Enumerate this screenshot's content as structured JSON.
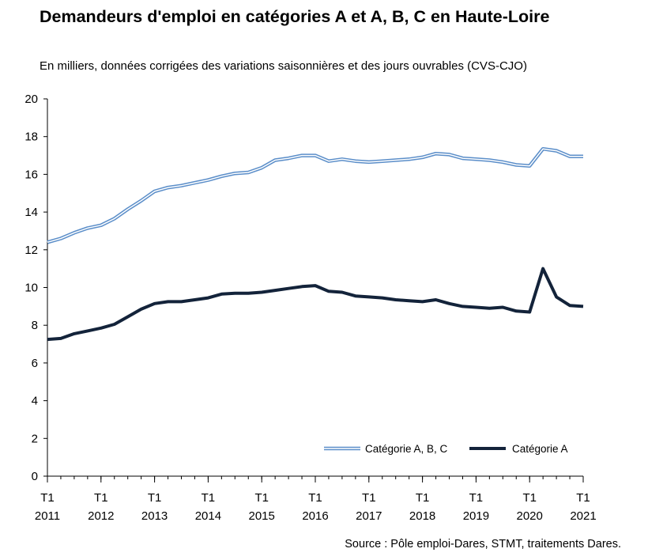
{
  "title": "Demandeurs d'emploi en catégories A et A, B, C en Haute-Loire",
  "subtitle": "En milliers, données corrigées des variations saisonnières et des jours ouvrables (CVS-CJO)",
  "source": "Source : Pôle emploi-Dares, STMT, traitements Dares.",
  "colors": {
    "abc": "#5b8ec9",
    "abc_inner": "#ffffff",
    "a": "#13233a",
    "axis": "#000000"
  },
  "chart_data": {
    "type": "line",
    "title": "Demandeurs d'emploi en catégories A et A, B, C en Haute-Loire",
    "subtitle": "En milliers, données corrigées des variations saisonnières et des jours ouvrables (CVS-CJO)",
    "ylim": [
      0,
      20
    ],
    "yticks": [
      0,
      2,
      4,
      6,
      8,
      10,
      12,
      14,
      16,
      18,
      20
    ],
    "xticks": [
      {
        "x": 2011,
        "label": "T1",
        "year": "2011"
      },
      {
        "x": 2012,
        "label": "T1",
        "year": "2012"
      },
      {
        "x": 2013,
        "label": "T1",
        "year": "2013"
      },
      {
        "x": 2014,
        "label": "T1",
        "year": "2014"
      },
      {
        "x": 2015,
        "label": "T1",
        "year": "2015"
      },
      {
        "x": 2016,
        "label": "T1",
        "year": "2016"
      },
      {
        "x": 2017,
        "label": "T1",
        "year": "2017"
      },
      {
        "x": 2018,
        "label": "T1",
        "year": "2018"
      },
      {
        "x": 2019,
        "label": "T1",
        "year": "2019"
      },
      {
        "x": 2020,
        "label": "T1",
        "year": "2020"
      },
      {
        "x": 2021,
        "label": "T1",
        "year": "2021"
      }
    ],
    "grid": false,
    "legend": "bottom-right",
    "x": [
      2011,
      2011.25,
      2011.5,
      2011.75,
      2012,
      2012.25,
      2012.5,
      2012.75,
      2013,
      2013.25,
      2013.5,
      2013.75,
      2014,
      2014.25,
      2014.5,
      2014.75,
      2015,
      2015.25,
      2015.5,
      2015.75,
      2016,
      2016.25,
      2016.5,
      2016.75,
      2017,
      2017.25,
      2017.5,
      2017.75,
      2018,
      2018.25,
      2018.5,
      2018.75,
      2019,
      2019.25,
      2019.5,
      2019.75,
      2020,
      2020.25,
      2020.5,
      2020.75,
      2021
    ],
    "series": [
      {
        "name": "Catégorie A, B, C",
        "style": "double",
        "values": [
          12.4,
          12.6,
          12.9,
          13.15,
          13.3,
          13.65,
          14.15,
          14.6,
          15.1,
          15.3,
          15.4,
          15.55,
          15.7,
          15.9,
          16.05,
          16.1,
          16.35,
          16.75,
          16.85,
          17.0,
          17.0,
          16.7,
          16.8,
          16.7,
          16.65,
          16.7,
          16.75,
          16.8,
          16.9,
          17.1,
          17.05,
          16.85,
          16.8,
          16.75,
          16.65,
          16.5,
          16.45,
          17.35,
          17.25,
          16.95,
          16.95
        ]
      },
      {
        "name": "Catégorie A",
        "style": "solid",
        "values": [
          7.25,
          7.3,
          7.55,
          7.7,
          7.85,
          8.05,
          8.45,
          8.85,
          9.15,
          9.25,
          9.25,
          9.35,
          9.45,
          9.65,
          9.7,
          9.7,
          9.75,
          9.85,
          9.95,
          10.05,
          10.1,
          9.8,
          9.75,
          9.55,
          9.5,
          9.45,
          9.35,
          9.3,
          9.25,
          9.35,
          9.15,
          9.0,
          8.95,
          8.9,
          8.95,
          8.75,
          8.7,
          11.0,
          9.5,
          9.05,
          9.0
        ]
      }
    ]
  }
}
